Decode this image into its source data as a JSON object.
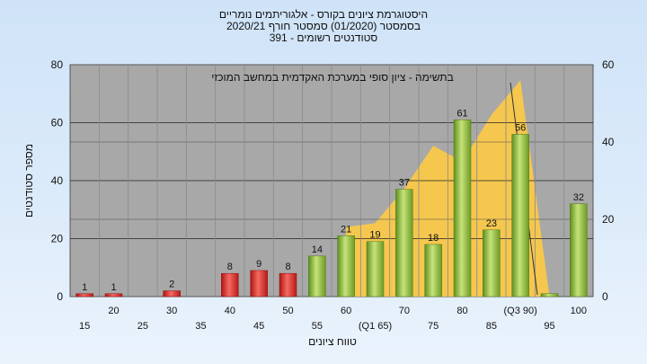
{
  "titles": {
    "line1": "היסטוגרמת ציונים בקורס - אלגוריתמים נומריים",
    "line2": "בסמסטר  (01/2020)  סמסטר חורף  2020/21",
    "line3": "סטודנטים רשומים - 391"
  },
  "chart_data": {
    "type": "bar",
    "annotation": "בתשימה - ציון סופי במערכת האקדמית במחשב המוכזי",
    "xlabel": "טווח ציונים",
    "ylabel": "מספר סטודנטים",
    "ylim": [
      0,
      80
    ],
    "y_ticks": [
      0,
      20,
      40,
      60,
      80
    ],
    "y2lim": [
      0,
      60
    ],
    "y2_ticks": [
      0,
      20,
      40,
      60
    ],
    "grid": true,
    "categories": [
      15,
      20,
      25,
      30,
      35,
      40,
      45,
      50,
      55,
      60,
      65,
      70,
      75,
      80,
      85,
      90,
      95,
      100
    ],
    "x_tick_labels": [
      "15",
      "20",
      "25",
      "30",
      "35",
      "40",
      "45",
      "50",
      "55",
      "60",
      "(Q1 65)",
      "70",
      "75",
      "80",
      "85",
      "(Q3 90)",
      "95",
      "100"
    ],
    "values": [
      1,
      1,
      0,
      2,
      0,
      8,
      9,
      8,
      14,
      21,
      19,
      37,
      18,
      61,
      23,
      56,
      1,
      32
    ],
    "labels": [
      "1",
      "1",
      "",
      "2",
      "",
      "8",
      "9",
      "8",
      "14",
      "21",
      "19",
      "37",
      "18",
      "61",
      "23",
      "56",
      "",
      "32"
    ],
    "fail_threshold": 55,
    "colors": {
      "fail": "#e0282a",
      "pass": "#8fbf3a",
      "area": "#f9c84a",
      "plot_bg": "#a8a8a8"
    },
    "area_series": {
      "x": [
        60,
        65,
        70,
        75,
        80,
        85,
        90,
        95,
        100
      ],
      "values": [
        18,
        19,
        28,
        39,
        35,
        47,
        56,
        0,
        0
      ]
    }
  }
}
